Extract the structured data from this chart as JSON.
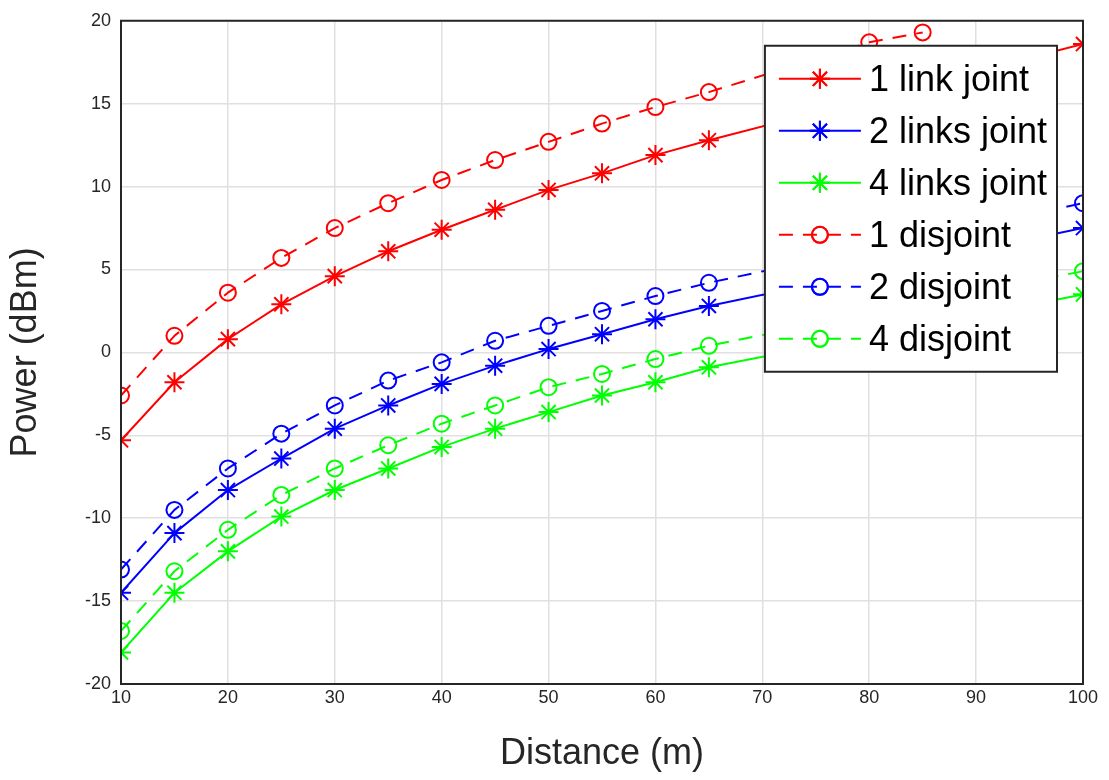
{
  "chart_data": {
    "type": "line",
    "xlabel": "Distance (m)",
    "ylabel": "Power (dBm)",
    "x": [
      10,
      15,
      20,
      25,
      30,
      35,
      40,
      45,
      50,
      55,
      60,
      65,
      70,
      75,
      80,
      85,
      90,
      95,
      100
    ],
    "xlim": [
      10,
      100
    ],
    "xticks": [
      10,
      20,
      30,
      40,
      50,
      60,
      70,
      80,
      90,
      100
    ],
    "ylim": [
      -20,
      20
    ],
    "yticks": [
      -20,
      -15,
      -10,
      -5,
      0,
      5,
      10,
      15,
      20
    ],
    "grid": true,
    "legend": "top right",
    "series": [
      {
        "name": "1 link joint",
        "color": "#ff0000",
        "marker": "cross",
        "line_style": "solid",
        "values": [
          -5.3,
          -1.8,
          0.8,
          2.9,
          4.6,
          6.1,
          7.4,
          8.6,
          9.8,
          10.8,
          11.9,
          12.8,
          null,
          null,
          null,
          null,
          null,
          null,
          18.6
        ]
      },
      {
        "name": "2 links joint",
        "color": "#0000ff",
        "marker": "cross",
        "line_style": "solid",
        "values": [
          -14.5,
          -10.9,
          -8.3,
          -6.4,
          -4.6,
          -3.2,
          -1.9,
          -0.8,
          0.2,
          1.1,
          2.0,
          2.8,
          null,
          null,
          null,
          null,
          null,
          null,
          7.5
        ]
      },
      {
        "name": "4 links joint",
        "color": "#00ff00",
        "marker": "cross",
        "line_style": "solid",
        "values": [
          -18.1,
          -14.5,
          -12.0,
          -9.9,
          -8.3,
          -7.0,
          -5.7,
          -4.6,
          -3.6,
          -2.6,
          -1.8,
          -0.9,
          null,
          null,
          null,
          null,
          null,
          null,
          3.5
        ]
      },
      {
        "name": "1 disjoint",
        "color": "#ff0000",
        "marker": "circle",
        "line_style": "dashed",
        "values": [
          -2.6,
          1.0,
          3.6,
          5.7,
          7.5,
          9.0,
          10.4,
          11.6,
          12.7,
          13.8,
          14.8,
          15.7,
          null,
          null,
          18.7,
          19.3,
          null,
          null,
          null
        ]
      },
      {
        "name": "2 disjoint",
        "color": "#0000ff",
        "marker": "circle",
        "line_style": "dashed",
        "values": [
          -13.1,
          -9.5,
          -7.0,
          -4.9,
          -3.2,
          -1.7,
          -0.6,
          0.7,
          1.6,
          2.5,
          3.4,
          4.2,
          null,
          null,
          null,
          null,
          null,
          null,
          9.0
        ]
      },
      {
        "name": "4 disjoint",
        "color": "#00ff00",
        "marker": "circle",
        "line_style": "dashed",
        "values": [
          -16.8,
          -13.2,
          -10.7,
          -8.6,
          -7.0,
          -5.6,
          -4.3,
          -3.2,
          -2.1,
          -1.3,
          -0.4,
          0.4,
          null,
          null,
          null,
          null,
          null,
          null,
          4.9
        ]
      }
    ]
  }
}
